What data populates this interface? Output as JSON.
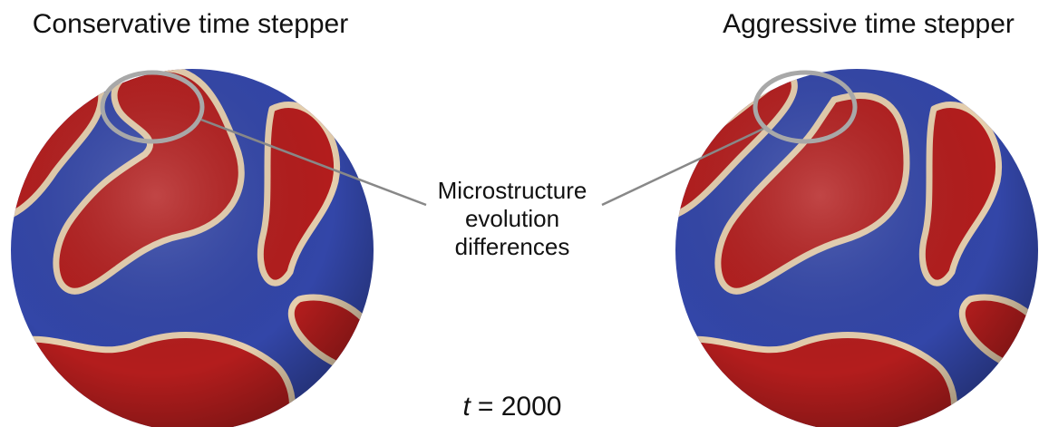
{
  "panels": [
    {
      "title": "Conservative time stepper"
    },
    {
      "title": "Aggressive time stepper"
    }
  ],
  "annotation": {
    "lines": [
      "Microstructure",
      "evolution",
      "differences"
    ]
  },
  "time_label": {
    "symbol": "t",
    "rest": "= 2000"
  }
}
